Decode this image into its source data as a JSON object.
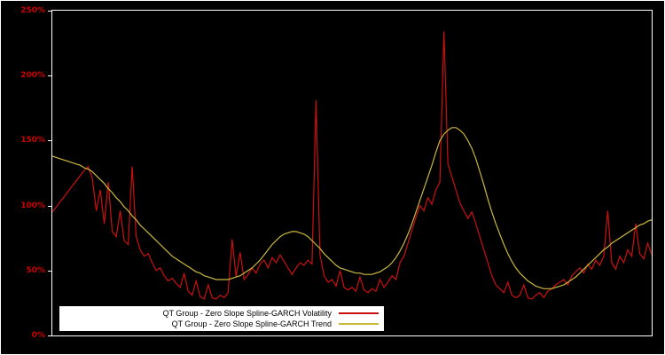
{
  "window": {
    "background": "#000000",
    "outer_border_color": "#ffffff"
  },
  "chart_data": {
    "type": "line",
    "title": "",
    "xlabel": "",
    "ylabel": "",
    "ylim": [
      0,
      250
    ],
    "grid": false,
    "legend_position": "bottom-left-inside",
    "frame_color": "#ffffff",
    "tick_label_color": "#cc0000",
    "background": "#000000",
    "yticks": [
      {
        "value": 0,
        "label": "0%"
      },
      {
        "value": 50,
        "label": "50%"
      },
      {
        "value": 100,
        "label": "100%"
      },
      {
        "value": 150,
        "label": "150%"
      },
      {
        "value": 200,
        "label": "200%"
      },
      {
        "value": 250,
        "label": "250%"
      }
    ],
    "series": [
      {
        "name": "QT Group - Zero Slope Spline-GARCH Volatility",
        "color": "#cc1010",
        "values": [
          95,
          99,
          103,
          107,
          111,
          115,
          119,
          123,
          127,
          130,
          121,
          96,
          112,
          86,
          118,
          80,
          76,
          96,
          73,
          70,
          130,
          76,
          66,
          61,
          63,
          56,
          50,
          52,
          46,
          42,
          44,
          40,
          37,
          48,
          34,
          31,
          42,
          30,
          28,
          39,
          29,
          28,
          31,
          29,
          33,
          74,
          45,
          64,
          43,
          47,
          52,
          48,
          55,
          58,
          52,
          60,
          56,
          62,
          57,
          52,
          47,
          52,
          56,
          54,
          58,
          55,
          181,
          62,
          46,
          41,
          43,
          38,
          50,
          37,
          35,
          37,
          34,
          45,
          35,
          33,
          36,
          34,
          43,
          37,
          41,
          46,
          43,
          56,
          61,
          71,
          81,
          91,
          100,
          96,
          106,
          101,
          112,
          118,
          234,
          132,
          122,
          112,
          102,
          96,
          90,
          95,
          86,
          76,
          66,
          56,
          46,
          39,
          36,
          33,
          41,
          31,
          29,
          31,
          39,
          29,
          28,
          31,
          33,
          29,
          34,
          36,
          39,
          41,
          43,
          39,
          46,
          49,
          52,
          48,
          55,
          51,
          58,
          54,
          61,
          96,
          56,
          51,
          61,
          56,
          66,
          61,
          86,
          63,
          59,
          71,
          62
        ]
      },
      {
        "name": "QT Group - Zero Slope Spline-GARCH Trend",
        "color": "#cbb83e",
        "values": [
          138,
          137,
          136,
          135,
          134,
          133,
          132,
          131,
          129,
          128,
          126,
          123,
          120,
          117,
          113,
          110,
          106,
          103,
          99,
          96,
          92,
          89,
          85,
          82,
          79,
          76,
          73,
          70,
          67,
          64,
          61,
          59,
          57,
          55,
          53,
          51,
          49,
          48,
          46,
          45,
          44,
          43,
          43,
          43,
          43,
          44,
          45,
          46,
          48,
          50,
          52,
          55,
          58,
          62,
          66,
          70,
          73,
          76,
          78,
          79,
          80,
          80,
          79,
          78,
          76,
          73,
          70,
          67,
          63,
          60,
          57,
          54,
          52,
          51,
          50,
          49,
          48,
          48,
          47,
          47,
          47,
          48,
          49,
          51,
          53,
          56,
          60,
          65,
          71,
          78,
          86,
          95,
          104,
          113,
          122,
          131,
          141,
          150,
          155,
          158,
          160,
          160,
          158,
          155,
          150,
          144,
          136,
          126,
          116,
          105,
          95,
          86,
          78,
          70,
          63,
          57,
          52,
          48,
          45,
          42,
          40,
          38,
          37,
          36,
          36,
          36,
          37,
          38,
          39,
          41,
          43,
          45,
          48,
          51,
          54,
          57,
          60,
          63,
          66,
          68,
          71,
          73,
          75,
          77,
          79,
          81,
          83,
          85,
          86,
          88,
          89
        ]
      }
    ]
  }
}
